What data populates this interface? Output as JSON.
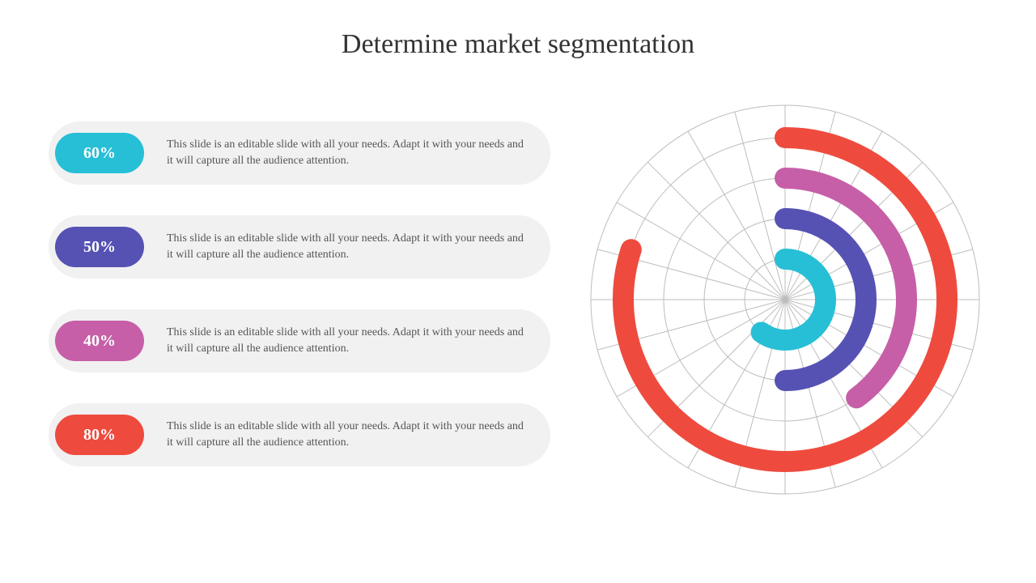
{
  "title": "Determine market segmentation",
  "items": [
    {
      "pct": "60%",
      "color": "#27bfd6",
      "desc": "This slide is an editable slide with all your needs. Adapt it with your needs and it will capture all the audience attention."
    },
    {
      "pct": "50%",
      "color": "#5652b4",
      "desc": "This slide is an editable slide with all your needs. Adapt it with your needs and it will capture all the audience attention."
    },
    {
      "pct": "40%",
      "color": "#c65fa7",
      "desc": "This slide is an editable slide with all your needs. Adapt it with your needs and it will capture all the audience attention."
    },
    {
      "pct": "80%",
      "color": "#ee4b3e",
      "desc": "This slide is an editable slide with all your needs. Adapt it with your needs and it will capture all the audience attention."
    }
  ],
  "chart": {
    "background_color": "#ffffff",
    "grid_color": "#bdbdbd",
    "grid_stroke_width": 1,
    "grid_circles": [
      50,
      100,
      150,
      200,
      240
    ],
    "grid_spoke_count": 24,
    "start_angle_deg": -90,
    "sweep_direction": "clockwise",
    "arc_stroke_width": 26,
    "arc_linecap": "round",
    "arcs": [
      {
        "radius": 50,
        "color": "#27bfd6",
        "percent": 60
      },
      {
        "radius": 100,
        "color": "#5652b4",
        "percent": 50
      },
      {
        "radius": 150,
        "color": "#c65fa7",
        "percent": 40
      },
      {
        "radius": 200,
        "color": "#ee4b3e",
        "percent": 80
      }
    ]
  },
  "typography": {
    "title_fontsize": 34,
    "pill_fontsize": 20,
    "desc_fontsize": 14,
    "font_family": "Georgia, serif",
    "title_color": "#333333",
    "desc_color": "#555555"
  },
  "item_bg_color": "#f1f1f2"
}
